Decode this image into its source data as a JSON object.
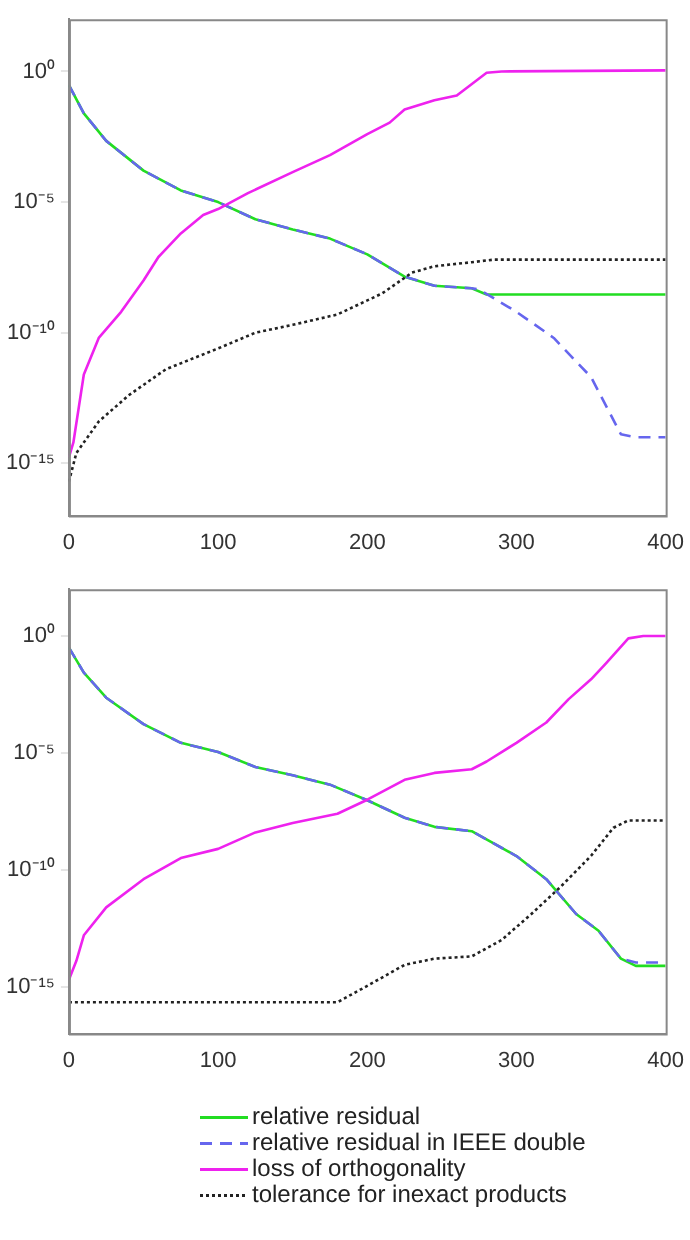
{
  "chart_data": [
    {
      "type": "line",
      "xlim": [
        0,
        400
      ],
      "xticks": [
        0,
        100,
        200,
        300,
        400
      ],
      "ylim": [
        1e-17,
        100
      ],
      "log": "y",
      "legend": false,
      "yticks": [
        {
          "value": 1,
          "label": "10⁰"
        },
        {
          "value": 1e-05,
          "label": "10⁻⁵"
        },
        {
          "value": 1e-10,
          "label": "10⁻¹⁰"
        },
        {
          "value": 1e-15,
          "label": "10⁻¹⁵"
        }
      ],
      "series": [
        {
          "color": "#22dd22",
          "line_style": "solid",
          "x": [
            0,
            10,
            25,
            50,
            75,
            100,
            125,
            150,
            175,
            200,
            225,
            245,
            270,
            280,
            400
          ],
          "values": [
            0.3,
            0.025,
            0.0022,
            0.00016,
            2.8e-05,
            1e-05,
            2.2e-06,
            9e-07,
            4e-07,
            1e-07,
            1.4e-08,
            6.3e-09,
            5e-09,
            2.9e-09,
            2.9e-09
          ]
        },
        {
          "color": "#6666ee",
          "line_style": "dashed",
          "x": [
            0,
            10,
            25,
            50,
            75,
            100,
            125,
            150,
            175,
            200,
            225,
            245,
            270,
            275,
            300,
            325,
            350,
            370,
            380,
            400
          ],
          "values": [
            0.3,
            0.025,
            0.0022,
            0.00016,
            2.8e-05,
            1e-05,
            2.2e-06,
            9e-07,
            4e-07,
            1e-07,
            1.4e-08,
            6.3e-09,
            5e-09,
            4.5e-09,
            6.3e-10,
            6.3e-11,
            2e-12,
            1.3e-14,
            1e-14,
            1e-14
          ]
        },
        {
          "color": "#ee22ee",
          "line_style": "solid",
          "x": [
            0,
            3,
            10,
            20,
            35,
            50,
            60,
            75,
            90,
            100,
            120,
            150,
            175,
            200,
            215,
            225,
            245,
            260,
            280,
            290,
            400
          ],
          "values": [
            1.7e-15,
            6.3e-15,
            2.5e-12,
            6.3e-11,
            6.3e-10,
            1e-08,
            7.9e-08,
            6.3e-07,
            3.2e-06,
            5.4e-06,
            2.2e-05,
            0.00014,
            0.00063,
            0.004,
            0.011,
            0.035,
            0.079,
            0.12,
            0.89,
            1,
            1.1
          ]
        },
        {
          "color": "#222222",
          "line_style": "dotted",
          "x": [
            0,
            5,
            20,
            40,
            65,
            100,
            125,
            150,
            180,
            210,
            230,
            245,
            270,
            285,
            400
          ],
          "values": [
            2e-16,
            2.5e-15,
            4e-14,
            4e-13,
            4e-12,
            2.5e-11,
            1e-10,
            2e-10,
            5e-10,
            3.2e-09,
            2e-08,
            3.5e-08,
            5e-08,
            6.3e-08,
            6.3e-08
          ]
        }
      ]
    },
    {
      "type": "line",
      "xlim": [
        0,
        400
      ],
      "xticks": [
        0,
        100,
        200,
        300,
        400
      ],
      "ylim": [
        1e-17,
        100
      ],
      "log": "y",
      "legend": "bottom",
      "yticks": [
        {
          "value": 1,
          "label": "10⁰"
        },
        {
          "value": 1e-05,
          "label": "10⁻⁵"
        },
        {
          "value": 1e-10,
          "label": "10⁻¹⁰"
        },
        {
          "value": 1e-15,
          "label": "10⁻¹⁵"
        }
      ],
      "series": [
        {
          "name": "relative residual",
          "color": "#22dd22",
          "line_style": "solid",
          "x": [
            0,
            10,
            25,
            50,
            75,
            100,
            125,
            150,
            175,
            200,
            225,
            245,
            270,
            300,
            320,
            340,
            355,
            370,
            380,
            400
          ],
          "values": [
            0.32,
            0.027,
            0.0023,
            0.00017,
            2.7e-05,
            1.1e-05,
            2.5e-06,
            1.1e-06,
            4.4e-07,
            9.5e-08,
            1.7e-08,
            6.9e-09,
            4.5e-09,
            3.9e-10,
            4e-11,
            1.3e-12,
            2.5e-13,
            1.6e-14,
            7.9e-15,
            7.9e-15
          ]
        },
        {
          "name": "relative residual in IEEE double",
          "color": "#6666ee",
          "line_style": "dashed",
          "x": [
            0,
            10,
            25,
            50,
            75,
            100,
            125,
            150,
            175,
            200,
            225,
            245,
            270,
            300,
            320,
            340,
            355,
            370,
            380,
            400
          ],
          "values": [
            0.32,
            0.027,
            0.0023,
            0.00017,
            2.7e-05,
            1.1e-05,
            2.5e-06,
            1.1e-06,
            4.4e-07,
            9.5e-08,
            1.7e-08,
            6.9e-09,
            4.5e-09,
            3.9e-10,
            4e-11,
            1.3e-12,
            2.5e-13,
            1.6e-14,
            1.1e-14,
            1.1e-14
          ]
        },
        {
          "name": "loss of orthogonality",
          "color": "#ee22ee",
          "line_style": "solid",
          "x": [
            0,
            5,
            10,
            25,
            50,
            75,
            100,
            125,
            150,
            180,
            200,
            225,
            245,
            270,
            280,
            300,
            320,
            335,
            350,
            360,
            375,
            385,
            400
          ],
          "values": [
            2e-15,
            1.3e-14,
            1.6e-13,
            2.5e-12,
            4e-11,
            3.2e-10,
            7.9e-10,
            4e-09,
            1e-08,
            2.5e-08,
            1e-07,
            7.1e-07,
            1.4e-06,
            2e-06,
            4.3e-06,
            2.7e-05,
            0.0002,
            0.002,
            0.014,
            0.068,
            0.79,
            1,
            1
          ]
        },
        {
          "name": "tolerance for inexact products",
          "color": "#222222",
          "line_style": "dotted",
          "x": [
            0,
            180,
            200,
            225,
            245,
            270,
            290,
            310,
            330,
            350,
            365,
            375,
            400
          ],
          "values": [
            2.2e-16,
            2.2e-16,
            1.1e-15,
            8.7e-15,
            1.6e-14,
            2e-14,
            1e-13,
            1.3e-12,
            2e-11,
            4e-10,
            6.3e-09,
            1.3e-08,
            1.3e-08
          ]
        }
      ]
    }
  ]
}
